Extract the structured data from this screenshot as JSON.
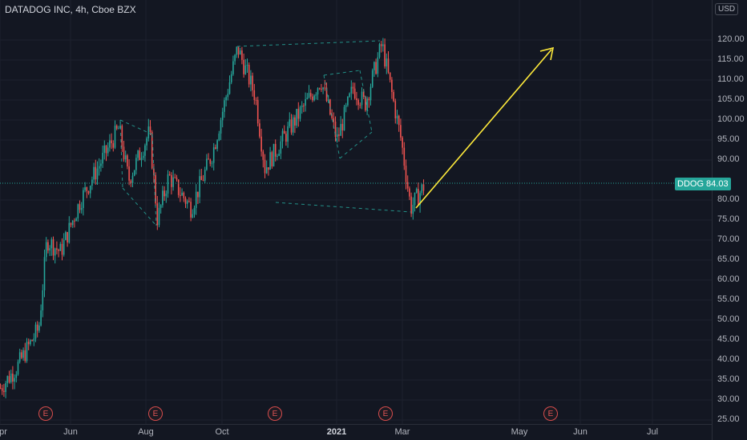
{
  "header": {
    "title": "DATADOG INC, 4h, Cboe BZX",
    "currency": "USD"
  },
  "price_axis": {
    "labels": [
      "120.00",
      "115.00",
      "110.00",
      "105.00",
      "100.00",
      "95.00",
      "90.00",
      "80.00",
      "75.00",
      "70.00",
      "65.00",
      "60.00",
      "55.00",
      "50.00",
      "45.00",
      "40.00",
      "35.00",
      "30.00",
      "25.00"
    ]
  },
  "time_axis": {
    "labels": [
      {
        "text": "pr",
        "bold": false
      },
      {
        "text": "Jun",
        "bold": false
      },
      {
        "text": "Aug",
        "bold": false
      },
      {
        "text": "Oct",
        "bold": false
      },
      {
        "text": "2021",
        "bold": true
      },
      {
        "text": "Mar",
        "bold": false
      },
      {
        "text": "May",
        "bold": false
      },
      {
        "text": "Jun",
        "bold": false
      },
      {
        "text": "Jul",
        "bold": false
      }
    ]
  },
  "earnings": {
    "marker_label": "E",
    "count": 5
  },
  "current_price": {
    "symbol": "DDOG",
    "value": "84.03",
    "label": "DDOG  84.03"
  },
  "colors": {
    "up": "#26a69a",
    "down": "#ef5350",
    "pattern": "#26a69a",
    "arrow": "#ffeb3b",
    "background": "#131722"
  },
  "chart_data": {
    "type": "candlestick",
    "title": "DATADOG INC, 4h, Cboe BZX",
    "ylim": [
      25,
      122
    ],
    "x_ticks": [
      "Apr",
      "Jun",
      "Aug",
      "Oct",
      "2021",
      "Mar",
      "May",
      "Jun",
      "Jul"
    ],
    "price_path": [
      [
        "Apr",
        33
      ],
      [
        "Apr-mid",
        38
      ],
      [
        "May",
        48
      ],
      [
        "May-mid",
        70
      ],
      [
        "May-end",
        67
      ],
      [
        "Jun",
        80
      ],
      [
        "Jun-mid",
        98
      ],
      [
        "Jul",
        85
      ],
      [
        "Jul-mid",
        97
      ],
      [
        "Jul-end",
        75
      ],
      [
        "Aug",
        86
      ],
      [
        "Aug-mid",
        78
      ],
      [
        "Sep",
        92
      ],
      [
        "Sep-end",
        118
      ],
      [
        "Oct",
        106
      ],
      [
        "Oct-mid",
        88
      ],
      [
        "Nov",
        96
      ],
      [
        "Nov-mid",
        110
      ],
      [
        "Dec",
        95
      ],
      [
        "Dec-mid",
        108
      ],
      [
        "2021",
        104
      ],
      [
        "Jan",
        119
      ],
      [
        "Feb",
        95
      ],
      [
        "Feb-mid",
        78
      ],
      [
        "Mar",
        84.03
      ]
    ],
    "projection": {
      "from": 78,
      "to": 117,
      "style": "arrow"
    },
    "last_price": 84.03
  }
}
